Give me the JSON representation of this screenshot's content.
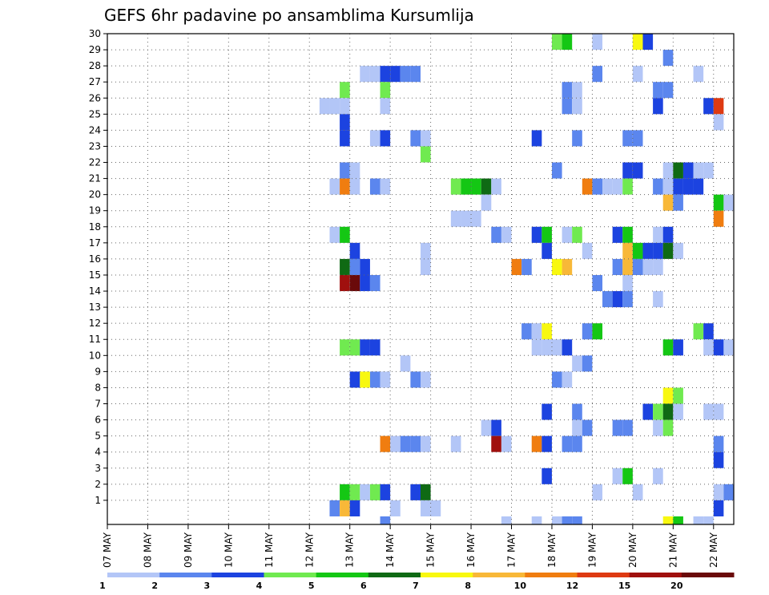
{
  "chart_data": {
    "type": "heatmap",
    "title": "GEFS 6hr padavine po ansamblima Kursumlija",
    "xlabel": "",
    "ylabel": "",
    "x_ticks": [
      "07 MAY",
      "08 MAY",
      "09 MAY",
      "10 MAY",
      "11 MAY",
      "12 MAY",
      "13 MAY",
      "14 MAY",
      "15 MAY",
      "16 MAY",
      "17 MAY",
      "18 MAY",
      "19 MAY",
      "20 MAY",
      "21 MAY",
      "22 MAY"
    ],
    "y_ticks": [
      "1",
      "2",
      "3",
      "4",
      "5",
      "6",
      "7",
      "8",
      "9",
      "10",
      "11",
      "12",
      "13",
      "14",
      "15",
      "16",
      "17",
      "18",
      "19",
      "20",
      "21",
      "22",
      "23",
      "24",
      "25",
      "26",
      "27",
      "28",
      "29",
      "30"
    ],
    "xlim": [
      0,
      61
    ],
    "ylim": [
      0,
      30
    ],
    "x_step_hours": 6,
    "grid": true,
    "legend": {
      "position": "bottom",
      "labels": [
        "1",
        "2",
        "3",
        "4",
        "5",
        "6",
        "7",
        "8",
        "10",
        "12",
        "15",
        "20"
      ],
      "colors": [
        "#b3c6f7",
        "#5b86ee",
        "#1c43e0",
        "#70ea50",
        "#14c714",
        "#0f6a14",
        "#f8f810",
        "#f8b838",
        "#f07d10",
        "#de3a12",
        "#a0100e",
        "#6a0a0a"
      ]
    },
    "cells": [
      {
        "x": 44,
        "y": 29,
        "level": 3
      },
      {
        "x": 45,
        "y": 29,
        "level": 4
      },
      {
        "x": 48,
        "y": 29,
        "level": 0
      },
      {
        "x": 52,
        "y": 29,
        "level": 6
      },
      {
        "x": 53,
        "y": 29,
        "level": 2
      },
      {
        "x": 55,
        "y": 28,
        "level": 1
      },
      {
        "x": 25,
        "y": 27,
        "level": 0
      },
      {
        "x": 26,
        "y": 27,
        "level": 0
      },
      {
        "x": 27,
        "y": 27,
        "level": 2
      },
      {
        "x": 28,
        "y": 27,
        "level": 2
      },
      {
        "x": 29,
        "y": 27,
        "level": 1
      },
      {
        "x": 30,
        "y": 27,
        "level": 1
      },
      {
        "x": 48,
        "y": 27,
        "level": 1
      },
      {
        "x": 52,
        "y": 27,
        "level": 0
      },
      {
        "x": 58,
        "y": 27,
        "level": 0
      },
      {
        "x": 23,
        "y": 26,
        "level": 3
      },
      {
        "x": 27,
        "y": 26,
        "level": 3
      },
      {
        "x": 45,
        "y": 26,
        "level": 1
      },
      {
        "x": 46,
        "y": 26,
        "level": 0
      },
      {
        "x": 54,
        "y": 26,
        "level": 1
      },
      {
        "x": 55,
        "y": 26,
        "level": 1
      },
      {
        "x": 21,
        "y": 25,
        "level": 0
      },
      {
        "x": 22,
        "y": 25,
        "level": 0
      },
      {
        "x": 23,
        "y": 25,
        "level": 0
      },
      {
        "x": 27,
        "y": 25,
        "level": 0
      },
      {
        "x": 45,
        "y": 25,
        "level": 1
      },
      {
        "x": 46,
        "y": 25,
        "level": 0
      },
      {
        "x": 54,
        "y": 25,
        "level": 2
      },
      {
        "x": 59,
        "y": 25,
        "level": 2
      },
      {
        "x": 60,
        "y": 25,
        "level": 9
      },
      {
        "x": 23,
        "y": 24,
        "level": 2
      },
      {
        "x": 60,
        "y": 24,
        "level": 0
      },
      {
        "x": 23,
        "y": 23,
        "level": 2
      },
      {
        "x": 26,
        "y": 23,
        "level": 0
      },
      {
        "x": 27,
        "y": 23,
        "level": 2
      },
      {
        "x": 30,
        "y": 23,
        "level": 1
      },
      {
        "x": 31,
        "y": 23,
        "level": 0
      },
      {
        "x": 42,
        "y": 23,
        "level": 2
      },
      {
        "x": 46,
        "y": 23,
        "level": 1
      },
      {
        "x": 51,
        "y": 23,
        "level": 1
      },
      {
        "x": 52,
        "y": 23,
        "level": 1
      },
      {
        "x": 31,
        "y": 22,
        "level": 3
      },
      {
        "x": 23,
        "y": 21,
        "level": 1
      },
      {
        "x": 24,
        "y": 21,
        "level": 0
      },
      {
        "x": 44,
        "y": 21,
        "level": 1
      },
      {
        "x": 51,
        "y": 21,
        "level": 2
      },
      {
        "x": 52,
        "y": 21,
        "level": 2
      },
      {
        "x": 55,
        "y": 21,
        "level": 0
      },
      {
        "x": 56,
        "y": 21,
        "level": 5
      },
      {
        "x": 57,
        "y": 21,
        "level": 2
      },
      {
        "x": 58,
        "y": 21,
        "level": 0
      },
      {
        "x": 59,
        "y": 21,
        "level": 0
      },
      {
        "x": 22,
        "y": 20,
        "level": 0
      },
      {
        "x": 23,
        "y": 20,
        "level": 8
      },
      {
        "x": 24,
        "y": 20,
        "level": 0
      },
      {
        "x": 26,
        "y": 20,
        "level": 1
      },
      {
        "x": 27,
        "y": 20,
        "level": 0
      },
      {
        "x": 34,
        "y": 20,
        "level": 3
      },
      {
        "x": 35,
        "y": 20,
        "level": 4
      },
      {
        "x": 36,
        "y": 20,
        "level": 4
      },
      {
        "x": 37,
        "y": 20,
        "level": 5
      },
      {
        "x": 38,
        "y": 20,
        "level": 0
      },
      {
        "x": 47,
        "y": 20,
        "level": 8
      },
      {
        "x": 48,
        "y": 20,
        "level": 1
      },
      {
        "x": 49,
        "y": 20,
        "level": 0
      },
      {
        "x": 50,
        "y": 20,
        "level": 0
      },
      {
        "x": 51,
        "y": 20,
        "level": 3
      },
      {
        "x": 54,
        "y": 20,
        "level": 1
      },
      {
        "x": 55,
        "y": 20,
        "level": 0
      },
      {
        "x": 56,
        "y": 20,
        "level": 2
      },
      {
        "x": 57,
        "y": 20,
        "level": 2
      },
      {
        "x": 58,
        "y": 20,
        "level": 2
      },
      {
        "x": 37,
        "y": 19,
        "level": 0
      },
      {
        "x": 55,
        "y": 19,
        "level": 7
      },
      {
        "x": 56,
        "y": 19,
        "level": 1
      },
      {
        "x": 60,
        "y": 19,
        "level": 4
      },
      {
        "x": 61,
        "y": 19,
        "level": 0
      },
      {
        "x": 34,
        "y": 18,
        "level": 0
      },
      {
        "x": 35,
        "y": 18,
        "level": 0
      },
      {
        "x": 36,
        "y": 18,
        "level": 0
      },
      {
        "x": 60,
        "y": 18,
        "level": 8
      },
      {
        "x": 22,
        "y": 17,
        "level": 0
      },
      {
        "x": 23,
        "y": 17,
        "level": 4
      },
      {
        "x": 38,
        "y": 17,
        "level": 1
      },
      {
        "x": 39,
        "y": 17,
        "level": 0
      },
      {
        "x": 42,
        "y": 17,
        "level": 2
      },
      {
        "x": 43,
        "y": 17,
        "level": 4
      },
      {
        "x": 45,
        "y": 17,
        "level": 0
      },
      {
        "x": 46,
        "y": 17,
        "level": 3
      },
      {
        "x": 50,
        "y": 17,
        "level": 2
      },
      {
        "x": 51,
        "y": 17,
        "level": 4
      },
      {
        "x": 54,
        "y": 17,
        "level": 0
      },
      {
        "x": 55,
        "y": 17,
        "level": 2
      },
      {
        "x": 24,
        "y": 16,
        "level": 2
      },
      {
        "x": 31,
        "y": 16,
        "level": 0
      },
      {
        "x": 43,
        "y": 16,
        "level": 2
      },
      {
        "x": 47,
        "y": 16,
        "level": 0
      },
      {
        "x": 51,
        "y": 16,
        "level": 7
      },
      {
        "x": 52,
        "y": 16,
        "level": 4
      },
      {
        "x": 53,
        "y": 16,
        "level": 2
      },
      {
        "x": 54,
        "y": 16,
        "level": 2
      },
      {
        "x": 55,
        "y": 16,
        "level": 5
      },
      {
        "x": 56,
        "y": 16,
        "level": 0
      },
      {
        "x": 23,
        "y": 15,
        "level": 5
      },
      {
        "x": 24,
        "y": 15,
        "level": 1
      },
      {
        "x": 25,
        "y": 15,
        "level": 2
      },
      {
        "x": 31,
        "y": 15,
        "level": 0
      },
      {
        "x": 40,
        "y": 15,
        "level": 8
      },
      {
        "x": 41,
        "y": 15,
        "level": 1
      },
      {
        "x": 44,
        "y": 15,
        "level": 6
      },
      {
        "x": 45,
        "y": 15,
        "level": 7
      },
      {
        "x": 50,
        "y": 15,
        "level": 1
      },
      {
        "x": 51,
        "y": 15,
        "level": 7
      },
      {
        "x": 52,
        "y": 15,
        "level": 1
      },
      {
        "x": 53,
        "y": 15,
        "level": 0
      },
      {
        "x": 54,
        "y": 15,
        "level": 0
      },
      {
        "x": 23,
        "y": 14,
        "level": 10
      },
      {
        "x": 24,
        "y": 14,
        "level": 11
      },
      {
        "x": 25,
        "y": 14,
        "level": 2
      },
      {
        "x": 26,
        "y": 14,
        "level": 1
      },
      {
        "x": 48,
        "y": 14,
        "level": 1
      },
      {
        "x": 51,
        "y": 14,
        "level": 0
      },
      {
        "x": 49,
        "y": 13,
        "level": 1
      },
      {
        "x": 50,
        "y": 13,
        "level": 2
      },
      {
        "x": 51,
        "y": 13,
        "level": 1
      },
      {
        "x": 54,
        "y": 13,
        "level": 0
      },
      {
        "x": 41,
        "y": 11,
        "level": 1
      },
      {
        "x": 42,
        "y": 11,
        "level": 0
      },
      {
        "x": 43,
        "y": 11,
        "level": 6
      },
      {
        "x": 47,
        "y": 11,
        "level": 1
      },
      {
        "x": 48,
        "y": 11,
        "level": 4
      },
      {
        "x": 58,
        "y": 11,
        "level": 3
      },
      {
        "x": 59,
        "y": 11,
        "level": 2
      },
      {
        "x": 23,
        "y": 10,
        "level": 3
      },
      {
        "x": 24,
        "y": 10,
        "level": 3
      },
      {
        "x": 25,
        "y": 10,
        "level": 2
      },
      {
        "x": 26,
        "y": 10,
        "level": 2
      },
      {
        "x": 42,
        "y": 10,
        "level": 0
      },
      {
        "x": 43,
        "y": 10,
        "level": 0
      },
      {
        "x": 44,
        "y": 10,
        "level": 0
      },
      {
        "x": 45,
        "y": 10,
        "level": 2
      },
      {
        "x": 55,
        "y": 10,
        "level": 4
      },
      {
        "x": 56,
        "y": 10,
        "level": 2
      },
      {
        "x": 59,
        "y": 10,
        "level": 0
      },
      {
        "x": 60,
        "y": 10,
        "level": 2
      },
      {
        "x": 61,
        "y": 10,
        "level": 0
      },
      {
        "x": 29,
        "y": 9,
        "level": 0
      },
      {
        "x": 46,
        "y": 9,
        "level": 0
      },
      {
        "x": 47,
        "y": 9,
        "level": 1
      },
      {
        "x": 24,
        "y": 8,
        "level": 2
      },
      {
        "x": 25,
        "y": 8,
        "level": 6
      },
      {
        "x": 26,
        "y": 8,
        "level": 1
      },
      {
        "x": 27,
        "y": 8,
        "level": 0
      },
      {
        "x": 30,
        "y": 8,
        "level": 1
      },
      {
        "x": 31,
        "y": 8,
        "level": 0
      },
      {
        "x": 44,
        "y": 8,
        "level": 1
      },
      {
        "x": 45,
        "y": 8,
        "level": 0
      },
      {
        "x": 55,
        "y": 7,
        "level": 6
      },
      {
        "x": 56,
        "y": 7,
        "level": 3
      },
      {
        "x": 43,
        "y": 6,
        "level": 2
      },
      {
        "x": 46,
        "y": 6,
        "level": 1
      },
      {
        "x": 53,
        "y": 6,
        "level": 2
      },
      {
        "x": 54,
        "y": 6,
        "level": 3
      },
      {
        "x": 55,
        "y": 6,
        "level": 5
      },
      {
        "x": 56,
        "y": 6,
        "level": 0
      },
      {
        "x": 59,
        "y": 6,
        "level": 0
      },
      {
        "x": 60,
        "y": 6,
        "level": 0
      },
      {
        "x": 37,
        "y": 5,
        "level": 0
      },
      {
        "x": 38,
        "y": 5,
        "level": 2
      },
      {
        "x": 46,
        "y": 5,
        "level": 0
      },
      {
        "x": 47,
        "y": 5,
        "level": 1
      },
      {
        "x": 50,
        "y": 5,
        "level": 1
      },
      {
        "x": 51,
        "y": 5,
        "level": 1
      },
      {
        "x": 54,
        "y": 5,
        "level": 0
      },
      {
        "x": 55,
        "y": 5,
        "level": 3
      },
      {
        "x": 27,
        "y": 4,
        "level": 8
      },
      {
        "x": 28,
        "y": 4,
        "level": 0
      },
      {
        "x": 29,
        "y": 4,
        "level": 1
      },
      {
        "x": 30,
        "y": 4,
        "level": 1
      },
      {
        "x": 31,
        "y": 4,
        "level": 0
      },
      {
        "x": 34,
        "y": 4,
        "level": 0
      },
      {
        "x": 38,
        "y": 4,
        "level": 10
      },
      {
        "x": 39,
        "y": 4,
        "level": 0
      },
      {
        "x": 42,
        "y": 4,
        "level": 8
      },
      {
        "x": 43,
        "y": 4,
        "level": 2
      },
      {
        "x": 45,
        "y": 4,
        "level": 1
      },
      {
        "x": 46,
        "y": 4,
        "level": 1
      },
      {
        "x": 60,
        "y": 4,
        "level": 1
      },
      {
        "x": 60,
        "y": 3,
        "level": 2
      },
      {
        "x": 43,
        "y": 2,
        "level": 2
      },
      {
        "x": 50,
        "y": 2,
        "level": 0
      },
      {
        "x": 51,
        "y": 2,
        "level": 4
      },
      {
        "x": 54,
        "y": 2,
        "level": 0
      },
      {
        "x": 23,
        "y": 1,
        "level": 4
      },
      {
        "x": 24,
        "y": 1,
        "level": 3
      },
      {
        "x": 25,
        "y": 1,
        "level": 0
      },
      {
        "x": 26,
        "y": 1,
        "level": 3
      },
      {
        "x": 27,
        "y": 1,
        "level": 2
      },
      {
        "x": 30,
        "y": 1,
        "level": 2
      },
      {
        "x": 31,
        "y": 1,
        "level": 5
      },
      {
        "x": 48,
        "y": 1,
        "level": 0
      },
      {
        "x": 52,
        "y": 1,
        "level": 0
      },
      {
        "x": 60,
        "y": 1,
        "level": 0
      },
      {
        "x": 61,
        "y": 1,
        "level": 1
      },
      {
        "x": 22,
        "y": 0,
        "level": 1
      },
      {
        "x": 23,
        "y": 0,
        "level": 7
      },
      {
        "x": 24,
        "y": 0,
        "level": 2
      },
      {
        "x": 28,
        "y": 0,
        "level": 0
      },
      {
        "x": 31,
        "y": 0,
        "level": 0
      },
      {
        "x": 32,
        "y": 0,
        "level": 0
      },
      {
        "x": 60,
        "y": 0,
        "level": 2
      },
      {
        "x": 27,
        "y": -1,
        "level": 1
      },
      {
        "x": 39,
        "y": -1,
        "level": 0
      },
      {
        "x": 42,
        "y": -1,
        "level": 0
      },
      {
        "x": 44,
        "y": -1,
        "level": 0
      },
      {
        "x": 45,
        "y": -1,
        "level": 1
      },
      {
        "x": 46,
        "y": -1,
        "level": 1
      },
      {
        "x": 55,
        "y": -1,
        "level": 6
      },
      {
        "x": 56,
        "y": -1,
        "level": 4
      },
      {
        "x": 58,
        "y": -1,
        "level": 0
      },
      {
        "x": 59,
        "y": -1,
        "level": 0
      }
    ]
  }
}
